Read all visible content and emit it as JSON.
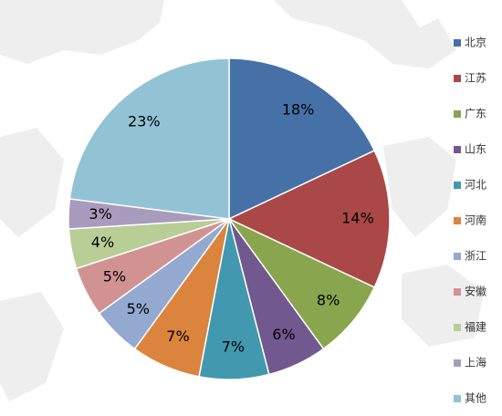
{
  "chart_data": {
    "type": "pie",
    "title": "",
    "unit": "%",
    "slices": [
      {
        "label": "北京",
        "value": 18,
        "display": "18%",
        "color": "#4571a7"
      },
      {
        "label": "江苏",
        "value": 14,
        "display": "14%",
        "color": "#a94846"
      },
      {
        "label": "广东",
        "value": 8,
        "display": "8%",
        "color": "#89a54e"
      },
      {
        "label": "山东",
        "value": 6,
        "display": "6%",
        "color": "#71588f"
      },
      {
        "label": "河北",
        "value": 7,
        "display": "7%",
        "color": "#4198af"
      },
      {
        "label": "河南",
        "value": 7,
        "display": "7%",
        "color": "#db843d"
      },
      {
        "label": "浙江",
        "value": 5,
        "display": "5%",
        "color": "#93a9cf"
      },
      {
        "label": "安徽",
        "value": 5,
        "display": "5%",
        "color": "#d19392"
      },
      {
        "label": "福建",
        "value": 4,
        "display": "4%",
        "color": "#b9cd96"
      },
      {
        "label": "上海",
        "value": 3,
        "display": "3%",
        "color": "#a99bbd"
      },
      {
        "label": "其他",
        "value": 23,
        "display": "23%",
        "color": "#92c3d4"
      }
    ],
    "legend_position": "right",
    "background": "world-map"
  }
}
